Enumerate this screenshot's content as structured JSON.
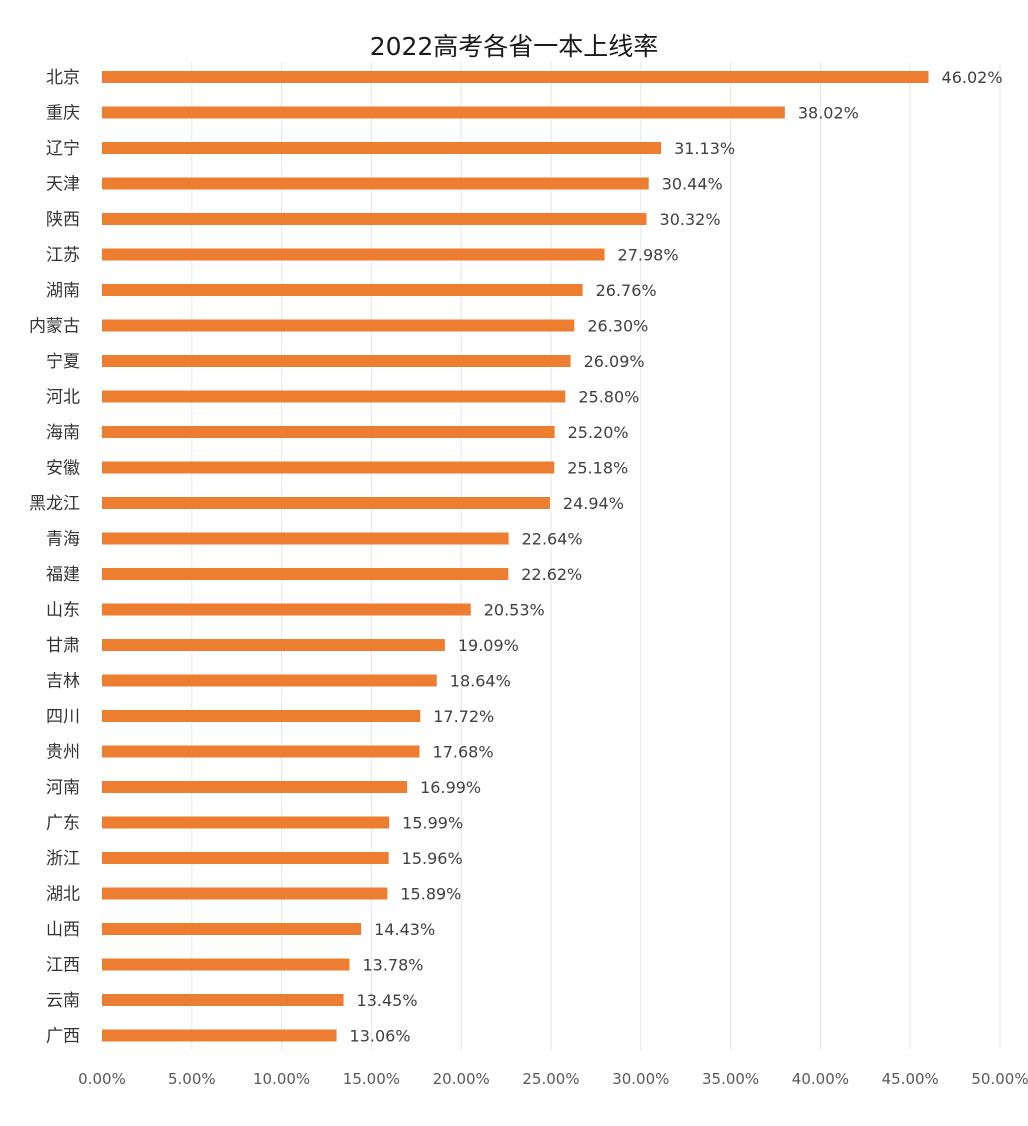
{
  "chart_data": {
    "type": "bar",
    "orientation": "horizontal",
    "title": "2022高考各省一本上线率",
    "xlabel": "",
    "ylabel": "",
    "xlim": [
      0,
      50
    ],
    "grid": true,
    "bar_color": "#ED7D31",
    "categories": [
      "北京",
      "重庆",
      "辽宁",
      "天津",
      "陕西",
      "江苏",
      "湖南",
      "内蒙古",
      "宁夏",
      "河北",
      "海南",
      "安徽",
      "黑龙江",
      "青海",
      "福建",
      "山东",
      "甘肃",
      "吉林",
      "四川",
      "贵州",
      "河南",
      "广东",
      "浙江",
      "湖北",
      "山西",
      "江西",
      "云南",
      "广西"
    ],
    "values": [
      46.02,
      38.02,
      31.13,
      30.44,
      30.32,
      27.98,
      26.76,
      26.3,
      26.09,
      25.8,
      25.2,
      25.18,
      24.94,
      22.64,
      22.62,
      20.53,
      19.09,
      18.64,
      17.72,
      17.68,
      16.99,
      15.99,
      15.96,
      15.89,
      14.43,
      13.78,
      13.45,
      13.06
    ],
    "value_labels": [
      "46.02%",
      "38.02%",
      "31.13%",
      "30.44%",
      "30.32%",
      "27.98%",
      "26.76%",
      "26.30%",
      "26.09%",
      "25.80%",
      "25.20%",
      "25.18%",
      "24.94%",
      "22.64%",
      "22.62%",
      "20.53%",
      "19.09%",
      "18.64%",
      "17.72%",
      "17.68%",
      "16.99%",
      "15.99%",
      "15.96%",
      "15.89%",
      "14.43%",
      "13.78%",
      "13.45%",
      "13.06%"
    ],
    "x_ticks": [
      "0.00%",
      "5.00%",
      "10.00%",
      "15.00%",
      "20.00%",
      "25.00%",
      "30.00%",
      "35.00%",
      "40.00%",
      "45.00%",
      "50.00%"
    ]
  }
}
